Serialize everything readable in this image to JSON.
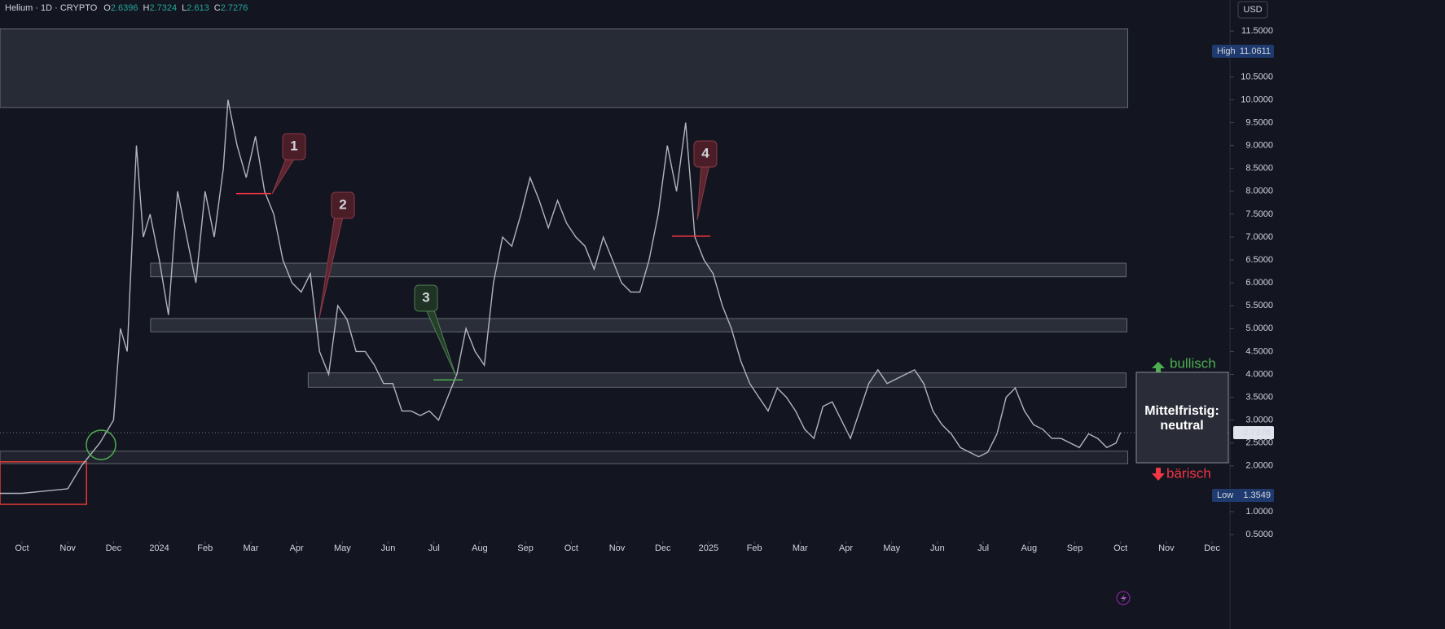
{
  "chart_data": {
    "type": "line",
    "title": "Helium · 1D · CRYPTO",
    "ohlc": [
      {
        "label": "O",
        "value": 2.6396
      },
      {
        "label": "H",
        "value": 2.7324
      },
      {
        "label": "L",
        "value": 2.613
      },
      {
        "label": "C",
        "value": 2.7276
      }
    ],
    "currency": "USD",
    "x": [
      -0.48,
      0,
      0.5,
      1,
      1.3,
      1.7,
      2.0,
      2.15,
      2.3,
      2.5,
      2.65,
      2.8,
      3.0,
      3.2,
      3.4,
      3.6,
      3.8,
      4.0,
      4.2,
      4.4,
      4.5,
      4.7,
      4.9,
      5.1,
      5.3,
      5.5,
      5.7,
      5.9,
      6.1,
      6.3,
      6.5,
      6.7,
      6.9,
      7.1,
      7.3,
      7.5,
      7.7,
      7.9,
      8.1,
      8.3,
      8.5,
      8.7,
      8.9,
      9.1,
      9.3,
      9.5,
      9.7,
      9.9,
      10.1,
      10.3,
      10.5,
      10.7,
      10.9,
      11.1,
      11.3,
      11.5,
      11.7,
      11.9,
      12.1,
      12.3,
      12.5,
      12.7,
      12.9,
      13.1,
      13.3,
      13.5,
      13.7,
      13.9,
      14.1,
      14.3,
      14.5,
      14.7,
      14.9,
      15.1,
      15.3,
      15.5,
      15.7,
      15.9,
      16.1,
      16.3,
      16.5,
      16.7,
      16.9,
      17.1,
      17.3,
      17.5,
      17.7,
      17.9,
      18.1,
      18.3,
      18.5,
      18.7,
      18.9,
      19.1,
      19.3,
      19.5,
      19.7,
      19.9,
      20.1,
      20.3,
      20.5,
      20.7,
      20.9,
      21.1,
      21.3,
      21.5,
      21.7,
      21.9,
      22.1,
      22.3,
      22.5,
      22.7,
      22.9,
      23.1,
      23.3,
      23.5,
      23.7,
      23.9,
      24.0
    ],
    "series": [
      {
        "name": "Helium",
        "color": "#b2b5be",
        "values": [
          1.4,
          1.4,
          1.45,
          1.5,
          2.0,
          2.5,
          3.0,
          5.0,
          4.5,
          9.0,
          7.0,
          7.5,
          6.5,
          5.3,
          8.0,
          7.0,
          6.0,
          8.0,
          7.0,
          8.5,
          10.0,
          9.0,
          8.3,
          9.2,
          8.0,
          7.5,
          6.5,
          6.0,
          5.8,
          6.2,
          4.5,
          4.0,
          5.5,
          5.2,
          4.5,
          4.5,
          4.2,
          3.8,
          3.8,
          3.2,
          3.2,
          3.1,
          3.2,
          3.0,
          3.5,
          4.0,
          5.0,
          4.5,
          4.2,
          6.0,
          7.0,
          6.8,
          7.5,
          8.3,
          7.8,
          7.2,
          7.8,
          7.3,
          7.0,
          6.8,
          6.3,
          7.0,
          6.5,
          6.0,
          5.8,
          5.8,
          6.5,
          7.5,
          9.0,
          8.0,
          9.5,
          7.0,
          6.5,
          6.2,
          5.5,
          5.0,
          4.3,
          3.8,
          3.5,
          3.2,
          3.7,
          3.5,
          3.2,
          2.8,
          2.6,
          3.3,
          3.4,
          3.0,
          2.6,
          3.2,
          3.8,
          4.1,
          3.8,
          3.9,
          4.0,
          4.1,
          3.8,
          3.2,
          2.9,
          2.7,
          2.4,
          2.3,
          2.2,
          2.3,
          2.7,
          3.5,
          3.7,
          3.2,
          2.9,
          2.8,
          2.6,
          2.6,
          2.5,
          2.4,
          2.7,
          2.6,
          2.4,
          2.5,
          2.7276
        ]
      }
    ],
    "xlim": [
      -0.48,
      26.39
    ],
    "ylim": [
      0.43,
      12.18
    ],
    "xticks": [
      {
        "value": 0,
        "label": "Oct"
      },
      {
        "value": 1,
        "label": "Nov"
      },
      {
        "value": 2,
        "label": "Dec"
      },
      {
        "value": 3,
        "label": "2024"
      },
      {
        "value": 4,
        "label": "Feb"
      },
      {
        "value": 5,
        "label": "Mar"
      },
      {
        "value": 6,
        "label": "Apr"
      },
      {
        "value": 7,
        "label": "May"
      },
      {
        "value": 8,
        "label": "Jun"
      },
      {
        "value": 9,
        "label": "Jul"
      },
      {
        "value": 10,
        "label": "Aug"
      },
      {
        "value": 11,
        "label": "Sep"
      },
      {
        "value": 12,
        "label": "Oct"
      },
      {
        "value": 13,
        "label": "Nov"
      },
      {
        "value": 14,
        "label": "Dec"
      },
      {
        "value": 15,
        "label": "2025"
      },
      {
        "value": 16,
        "label": "Feb"
      },
      {
        "value": 17,
        "label": "Mar"
      },
      {
        "value": 18,
        "label": "Apr"
      },
      {
        "value": 19,
        "label": "May"
      },
      {
        "value": 20,
        "label": "Jun"
      },
      {
        "value": 21,
        "label": "Jul"
      },
      {
        "value": 22,
        "label": "Aug"
      },
      {
        "value": 23,
        "label": "Sep"
      },
      {
        "value": 24,
        "label": "Oct"
      },
      {
        "value": 25,
        "label": "Nov"
      },
      {
        "value": 26,
        "label": "Dec"
      }
    ],
    "yticks": [
      {
        "value": 11.5,
        "label": "11.5000"
      },
      {
        "value": 10.5,
        "label": "10.5000"
      },
      {
        "value": 10,
        "label": "10.0000"
      },
      {
        "value": 9.5,
        "label": "9.5000"
      },
      {
        "value": 9,
        "label": "9.0000"
      },
      {
        "value": 8.5,
        "label": "8.5000"
      },
      {
        "value": 8,
        "label": "8.0000"
      },
      {
        "value": 7.5,
        "label": "7.5000"
      },
      {
        "value": 7,
        "label": "7.0000"
      },
      {
        "value": 6.5,
        "label": "6.5000"
      },
      {
        "value": 6,
        "label": "6.0000"
      },
      {
        "value": 5.5,
        "label": "5.5000"
      },
      {
        "value": 5,
        "label": "5.0000"
      },
      {
        "value": 4.5,
        "label": "4.5000"
      },
      {
        "value": 4,
        "label": "4.0000"
      },
      {
        "value": 3.5,
        "label": "3.5000"
      },
      {
        "value": 3,
        "label": "3.0000"
      },
      {
        "value": 2.5,
        "label": "2.5000"
      },
      {
        "value": 2,
        "label": "2.0000"
      },
      {
        "value": 1,
        "label": "1.0000"
      },
      {
        "value": 0.5,
        "label": "0.5000"
      }
    ],
    "high": {
      "label": "High",
      "value": 11.0611
    },
    "low": {
      "label": "Low",
      "value": 1.3549
    },
    "last": 2.7276,
    "zones": [
      {
        "x": [
          -0.48,
          24.16
        ],
        "y": [
          9.83,
          11.55
        ],
        "color": "#2a2d38"
      },
      {
        "x": [
          2.81,
          24.12
        ],
        "y": [
          6.13,
          6.43
        ],
        "color": "#2e313c"
      },
      {
        "x": [
          2.81,
          24.14
        ],
        "y": [
          4.93,
          5.22
        ],
        "color": "#2e313c"
      },
      {
        "x": [
          6.25,
          24.12
        ],
        "y": [
          3.72,
          4.03
        ],
        "color": "#2e313c"
      },
      {
        "x": [
          -0.48,
          24.16
        ],
        "y": [
          2.05,
          2.32
        ],
        "color": "#22252f"
      },
      {
        "x": [
          -0.48,
          1.41
        ],
        "y": [
          1.16,
          2.09
        ],
        "color": "#e53935"
      }
    ],
    "levels": [
      {
        "x": [
          4.68,
          5.44
        ],
        "y": 7.95,
        "color": "#f23645"
      },
      {
        "x": [
          14.2,
          15.04
        ],
        "y": 7.02,
        "color": "#f23645"
      },
      {
        "x": [
          8.99,
          9.63
        ],
        "y": 3.88,
        "color": "#4caf50"
      }
    ],
    "annotations": [
      {
        "text": "1"
      },
      {
        "text": "2"
      },
      {
        "text": "3"
      },
      {
        "text": "4"
      }
    ],
    "outlook": {
      "up": "bullisch",
      "down": "bärisch",
      "label": "Mittelfristig:",
      "state": "neutral"
    }
  }
}
